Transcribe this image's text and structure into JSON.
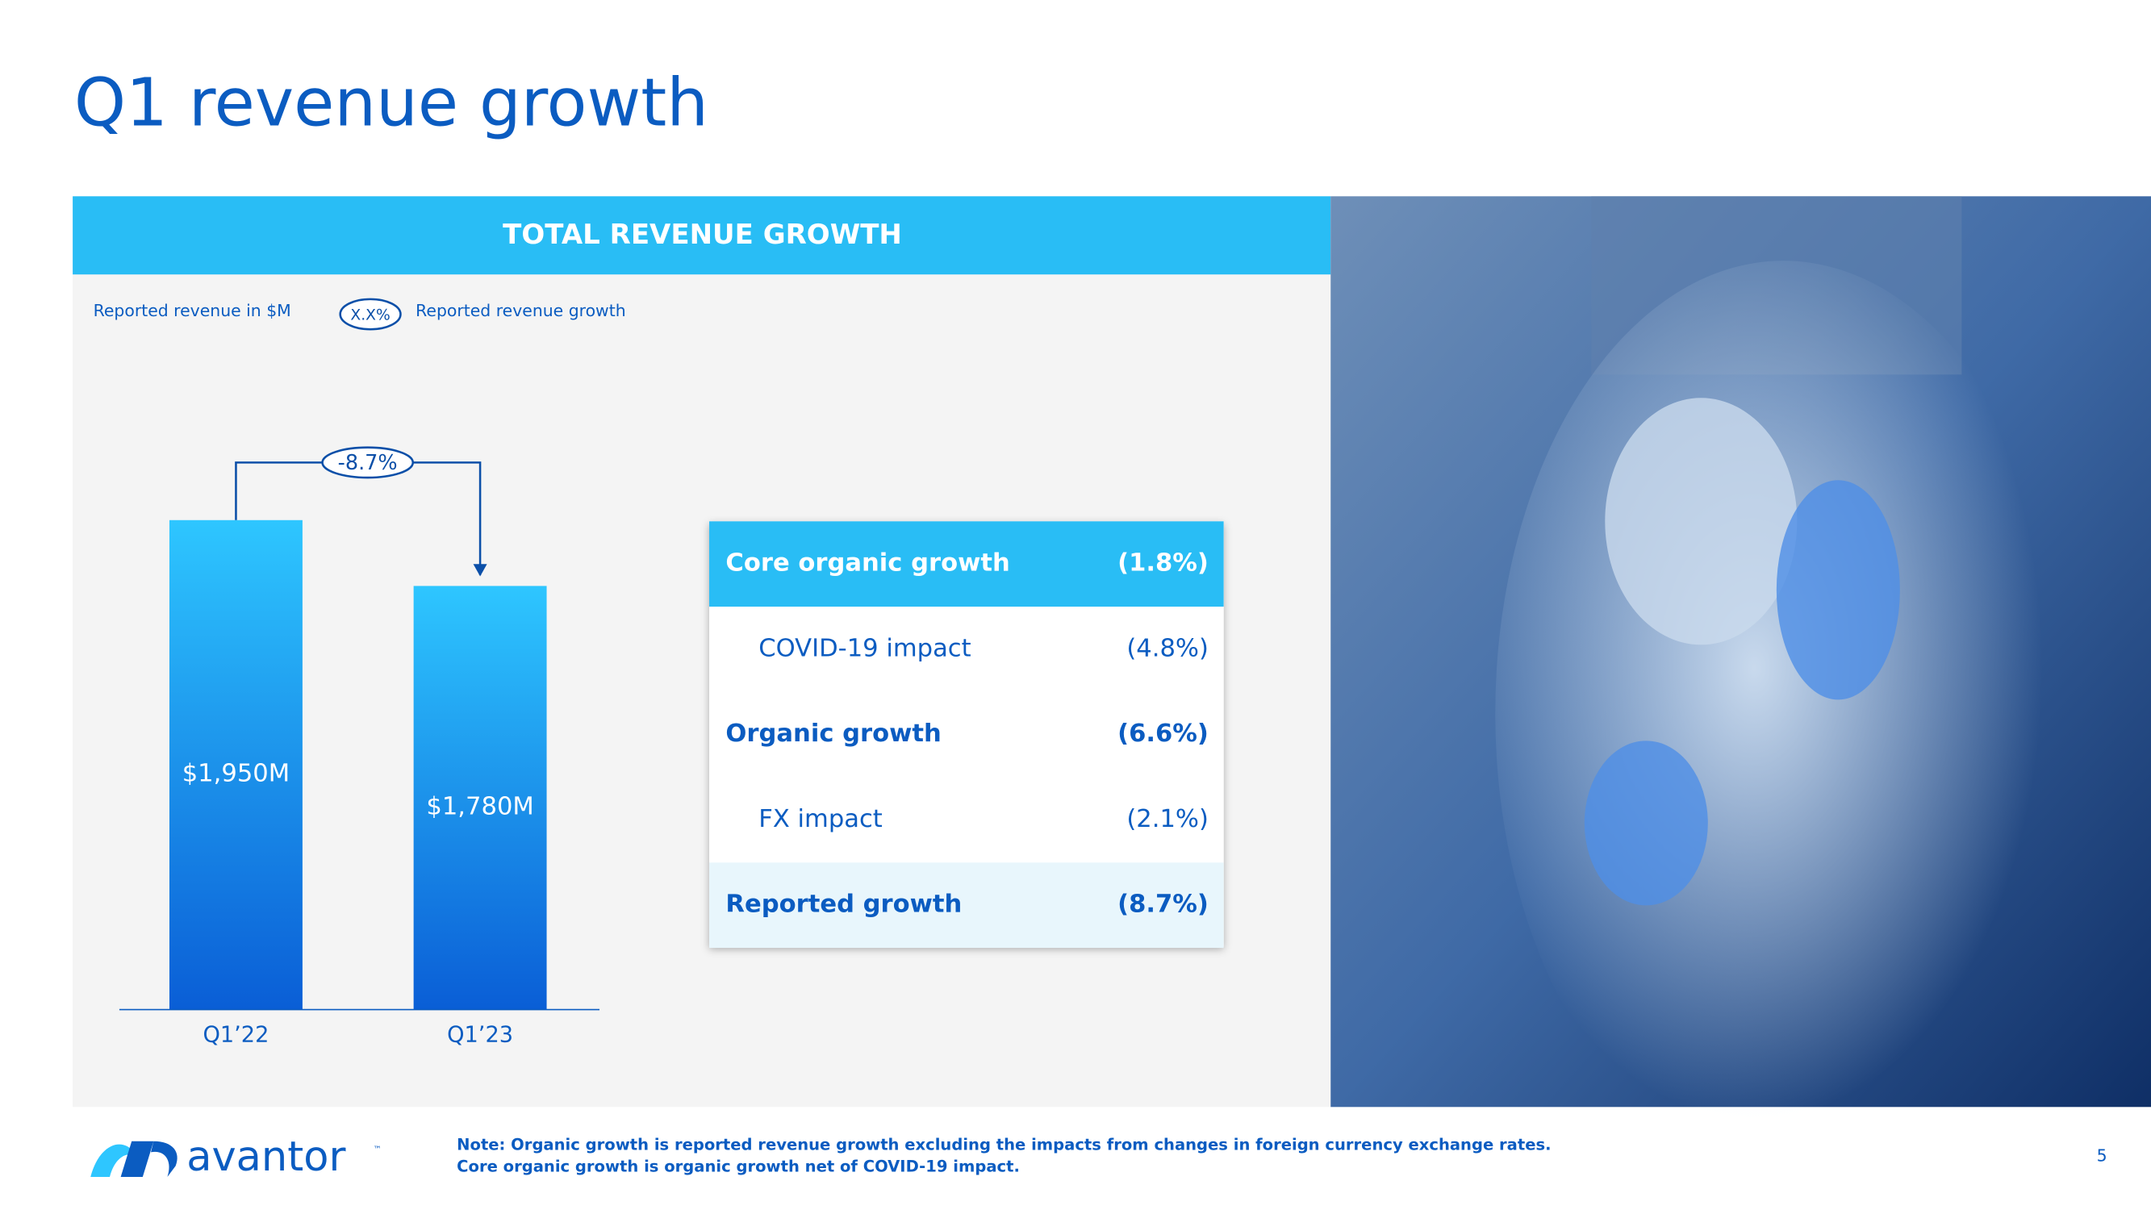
{
  "title": "Q1 revenue growth",
  "panel_title": "TOTAL REVENUE GROWTH",
  "legend": {
    "revenue": "Reported revenue in $M",
    "growth_symbol": "X.X%",
    "growth": "Reported revenue growth"
  },
  "chart_data": {
    "type": "bar",
    "categories": [
      "Q1’22",
      "Q1’23"
    ],
    "values": [
      1950,
      1780
    ],
    "value_labels": [
      "$1,950M",
      "$1,780M"
    ],
    "annotation": "-8.7%",
    "ylim": [
      686,
      2000
    ]
  },
  "table": {
    "rows": [
      [
        "Core organic growth",
        "(1.8%)"
      ],
      [
        "COVID-19 impact",
        "(4.8%)"
      ],
      [
        "Organic growth",
        "(6.6%)"
      ],
      [
        "FX impact",
        "(2.1%)"
      ],
      [
        "Reported growth",
        "(8.7%)"
      ]
    ]
  },
  "footer": {
    "logo": "avantor",
    "logo_tm": "™",
    "note_1": "Note: Organic growth is reported revenue growth excluding the impacts from changes in foreign currency exchange rates.",
    "note_2": "Core organic growth is organic growth net of COVID-19 impact.",
    "page": "5"
  }
}
